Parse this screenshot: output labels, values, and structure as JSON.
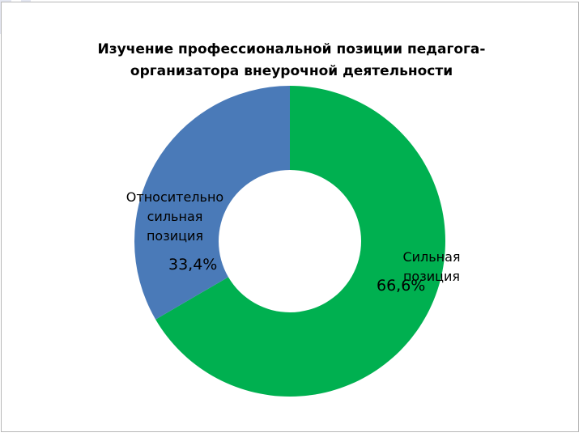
{
  "chart_data": {
    "type": "pie",
    "title_lines": [
      "Изучение профессиональной позиции педагога-",
      "организатора внеурочной деятельности"
    ],
    "categories": [
      "Сильная позиция",
      "Относительно сильная позиция"
    ],
    "values": [
      66.6,
      33.4
    ],
    "value_labels": [
      "66,6%",
      "33,4%"
    ],
    "category_label_lines": [
      [
        "Сильная",
        "позиция"
      ],
      [
        "Относительно",
        "сильная",
        "позиция"
      ]
    ],
    "colors": [
      "#00b050",
      "#4a7ab8"
    ],
    "donut": true,
    "legend": "none"
  }
}
